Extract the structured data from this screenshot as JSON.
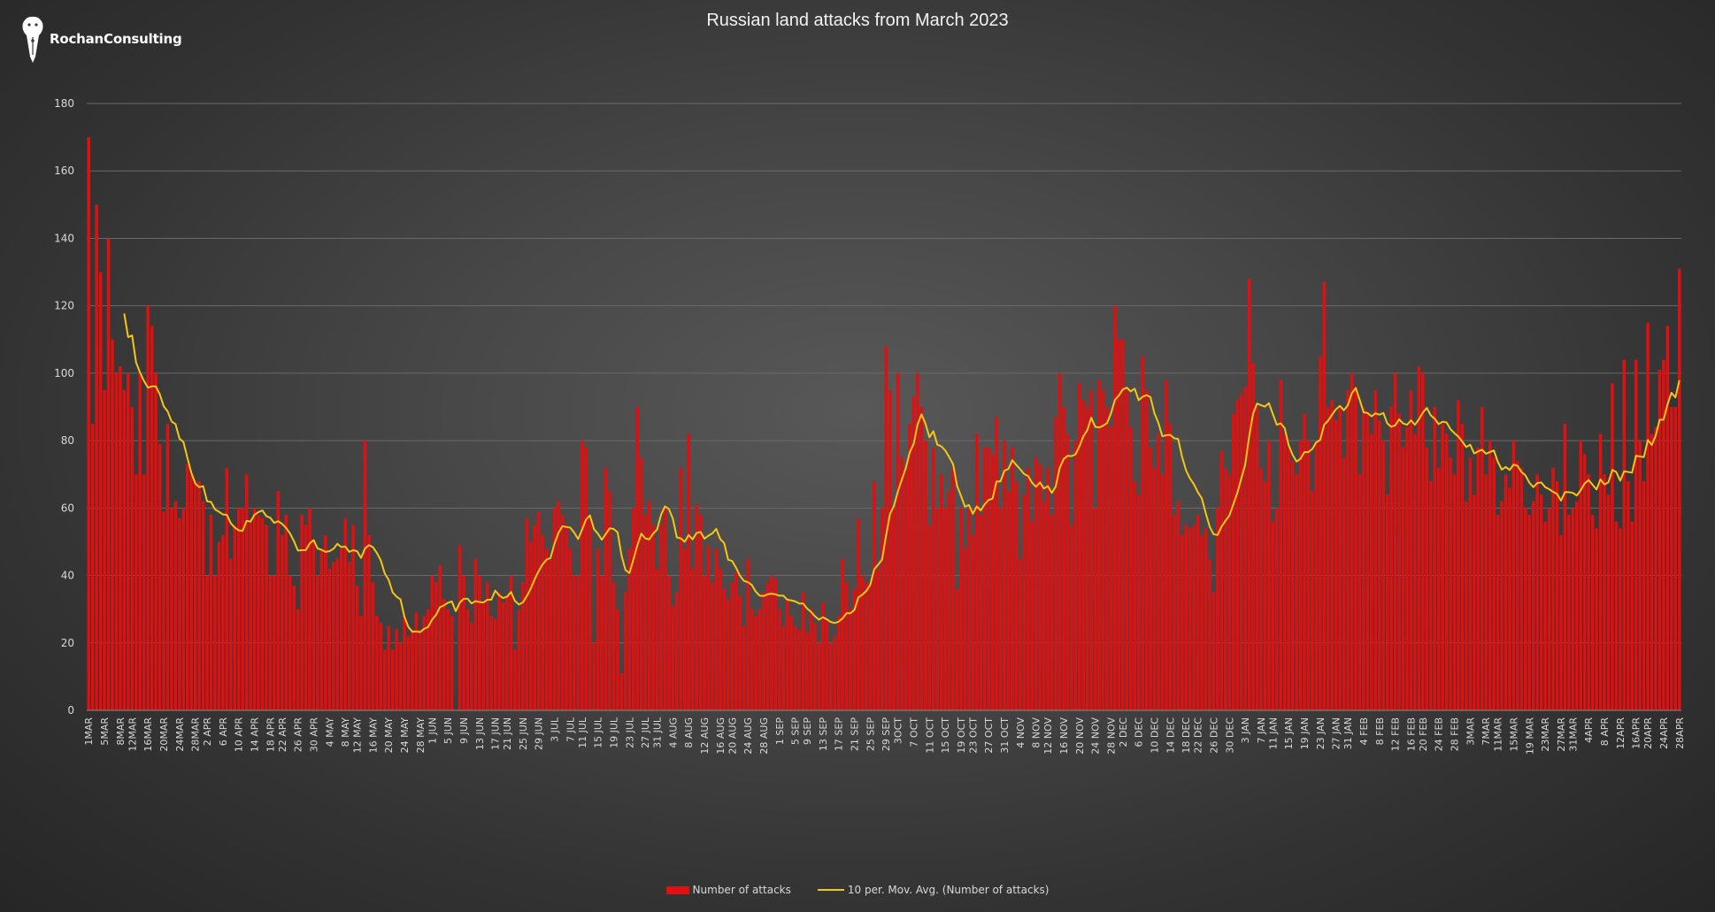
{
  "brand": {
    "name": "RochanConsulting",
    "logo_icon": "pen-nib-lion-icon"
  },
  "colors": {
    "bar": "#e01010",
    "line": "#f5c518",
    "grid": "#6a6a6a",
    "axis_text": "#d9d9d9",
    "title": "#f2f2f2"
  },
  "chart_data": {
    "type": "bar",
    "title": "Russian land attacks from March 2023",
    "xlabel": "",
    "ylabel": "",
    "ylim": [
      0,
      180
    ],
    "yticks": [
      0,
      20,
      40,
      60,
      80,
      100,
      120,
      140,
      160,
      180
    ],
    "grid": true,
    "legend_position": "bottom",
    "date_range": [
      "2023-03-01",
      "2024-04-28"
    ],
    "xtick_labels": [
      "1MAR",
      "5MAR",
      "8MAR",
      "12MAR",
      "16MAR",
      "20MAR",
      "24MAR",
      "28MAR",
      "2 APR",
      "6 APR",
      "10 APR",
      "14 APR",
      "18 APR",
      "22 APR",
      "26 APR",
      "30 APR",
      "4 MAY",
      "8 MAY",
      "12 MAY",
      "16 MAY",
      "20 MAY",
      "24 MAY",
      "28 MAY",
      "1 JUN",
      "5 JUN",
      "9 JUN",
      "13 JUN",
      "17 JUN",
      "21 JUN",
      "25 JUN",
      "29 JUN",
      "3 JUL",
      "7 JUL",
      "11 JUL",
      "15 JUL",
      "19 JUL",
      "23 JUL",
      "27 JUL",
      "31 JUL",
      "4 AUG",
      "8 AUG",
      "12 AUG",
      "16 AUG",
      "20 AUG",
      "24 AUG",
      "28 AUG",
      "1 SEP",
      "5 SEP",
      "9 SEP",
      "13 SEP",
      "17 SEP",
      "21 SEP",
      "25 SEP",
      "29 SEP",
      "3OCT",
      "7 OCT",
      "11 OCT",
      "15 OCT",
      "19 OCT",
      "23 OCT",
      "27 OCT",
      "31 OCT",
      "4 NOV",
      "8 NOV",
      "12 NOV",
      "16 NOV",
      "20 NOV",
      "24 NOV",
      "28 NOV",
      "2 DEC",
      "6 DEC",
      "10 DEC",
      "14 DEC",
      "18 DEC",
      "22 DEC",
      "26 DEC",
      "30 DEC",
      "3 JAN",
      "7 JAN",
      "11 JAN",
      "15 JAN",
      "19 JAN",
      "23 JAN",
      "27 JAN",
      "31 JAN",
      "4 FEB",
      "8 FEB",
      "12 FEB",
      "16 FEB",
      "20 FEB",
      "24 FEB",
      "28 FEB",
      "3MAR",
      "7MAR",
      "11MAR",
      "15MAR",
      "19 MAR",
      "23MAR",
      "27MAR",
      "31MAR",
      "4APR",
      "8 APR",
      "12APR",
      "16APR",
      "20APR",
      "24APR",
      "28APR"
    ],
    "series": [
      {
        "name": "Number of attacks",
        "type": "bar",
        "values": [
          170,
          85,
          150,
          130,
          95,
          140,
          110,
          100,
          102,
          95,
          100,
          90,
          70,
          100,
          70,
          120,
          114,
          100,
          79,
          59,
          85,
          60,
          62,
          57,
          60,
          73,
          70,
          68,
          68,
          62,
          40,
          58,
          40,
          50,
          52,
          72,
          45,
          55,
          60,
          60,
          70,
          56,
          60,
          58,
          57,
          55,
          40,
          40,
          65,
          52,
          58,
          40,
          37,
          30,
          58,
          55,
          60,
          50,
          40,
          48,
          52,
          42,
          44,
          45,
          48,
          57,
          44,
          55,
          37,
          28,
          80,
          52,
          38,
          28,
          26,
          18,
          25,
          18,
          24,
          20,
          28,
          22,
          24,
          29,
          24,
          28,
          30,
          40,
          38,
          43,
          33,
          30,
          28,
          0,
          49,
          40,
          30,
          26,
          45,
          40,
          32,
          38,
          28,
          27,
          35,
          32,
          34,
          40,
          18,
          30,
          38,
          57,
          50,
          55,
          59,
          52,
          48,
          45,
          60,
          62,
          58,
          55,
          48,
          40,
          40,
          80,
          78,
          57,
          20,
          48,
          40,
          72,
          65,
          38,
          30,
          11,
          35,
          48,
          60,
          90,
          75,
          58,
          62,
          55,
          42,
          55,
          60,
          40,
          31,
          35,
          72,
          48,
          82,
          42,
          61,
          58,
          40,
          49,
          38,
          48,
          42,
          36,
          33,
          38,
          41,
          34,
          25,
          45,
          30,
          28,
          30,
          35,
          38,
          40,
          39,
          30,
          25,
          33,
          28,
          25,
          24,
          35,
          23,
          30,
          26,
          20,
          32,
          27,
          20,
          22,
          28,
          45,
          38,
          30,
          36,
          57,
          40,
          38,
          38,
          68,
          42,
          60,
          108,
          95,
          60,
          100,
          75,
          72,
          85,
          93,
          100,
          90,
          80,
          55,
          78,
          60,
          70,
          60,
          65,
          72,
          36,
          60,
          48,
          60,
          52,
          82,
          58,
          78,
          78,
          76,
          87,
          60,
          80,
          65,
          78,
          68,
          45,
          64,
          72,
          56,
          75,
          73,
          62,
          72,
          58,
          87,
          100,
          90,
          82,
          55,
          80,
          97,
          92,
          90,
          95,
          60,
          98,
          95,
          90,
          84,
          120,
          110,
          110,
          95,
          84,
          68,
          64,
          105,
          95,
          78,
          72,
          82,
          70,
          98,
          85,
          58,
          62,
          52,
          55,
          54,
          55,
          58,
          52,
          54,
          45,
          35,
          60,
          77,
          72,
          70,
          88,
          92,
          94,
          96,
          128,
          103,
          90,
          72,
          68,
          80,
          56,
          60,
          98,
          82,
          78,
          74,
          70,
          80,
          88,
          80,
          65,
          80,
          105,
          127,
          90,
          92,
          86,
          90,
          75,
          95,
          100,
          96,
          70,
          90,
          88,
          82,
          95,
          86,
          80,
          64,
          90,
          100,
          88,
          78,
          84,
          95,
          82,
          102,
          100,
          78,
          68,
          90,
          72,
          85,
          82,
          75,
          70,
          92,
          85,
          62,
          75,
          64,
          78,
          90,
          70,
          80,
          75,
          58,
          62,
          70,
          66,
          80,
          74,
          72,
          60,
          58,
          62,
          70,
          64,
          56,
          60,
          72,
          68,
          52,
          85,
          58,
          60,
          62,
          80,
          76,
          70,
          58,
          54,
          82,
          70,
          64,
          97,
          56,
          54,
          104,
          68,
          56,
          104,
          80,
          68,
          115,
          82,
          84,
          101,
          104,
          114,
          90,
          90,
          131
        ]
      },
      {
        "name": "10 per. Mov. Avg. (Number of attacks)",
        "type": "line",
        "window": 10
      }
    ]
  },
  "legend": {
    "bar_label": "Number of attacks",
    "line_label": "10 per. Mov. Avg. (Number of attacks)"
  }
}
